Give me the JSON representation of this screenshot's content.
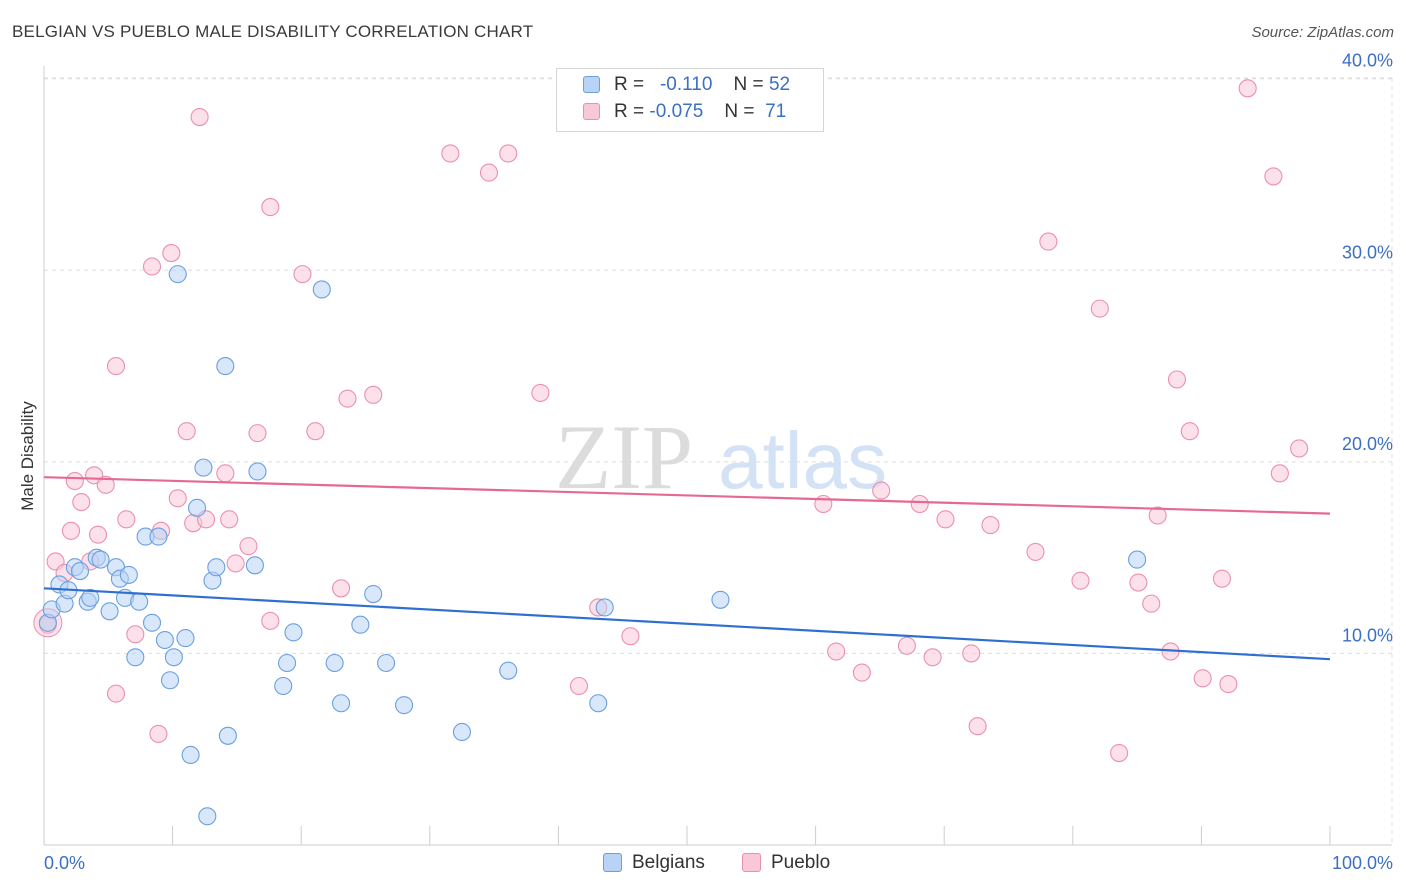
{
  "title": "BELGIAN VS PUEBLO MALE DISABILITY CORRELATION CHART",
  "source": "Source: ZipAtlas.com",
  "watermark": {
    "zip": "ZIP",
    "atlas": "atlas"
  },
  "legend": {
    "r_label": "R =",
    "n_label": "N =",
    "rows": [
      {
        "r": "-0.110",
        "n": "52",
        "fill": "#b8d3f5",
        "stroke": "#6b9fe0"
      },
      {
        "r": "-0.075",
        "n": "71",
        "fill": "#f9c8d8",
        "stroke": "#ec8fae"
      }
    ]
  },
  "bottom_legend": [
    "Belgians",
    "Pueblo"
  ],
  "colors": {
    "blue_fill": "#b8d3f5",
    "blue_stroke": "#6b9fe0",
    "blue_line": "#2f6fcf",
    "pink_fill": "#f9c8d8",
    "pink_stroke": "#ec8fae",
    "pink_line": "#e46a93",
    "grid": "#dddddd",
    "axis_text": "#3b6fc4"
  },
  "chart_data": {
    "type": "scatter",
    "ylabel": "Male Disability",
    "xlim": [
      0,
      100
    ],
    "ylim": [
      0,
      41.5
    ],
    "x_tick_labels": [
      "0.0%",
      "100.0%"
    ],
    "y_ticks": [
      10,
      20,
      30,
      40
    ],
    "y_tick_labels": [
      "10.0%",
      "20.0%",
      "30.0%",
      "40.0%"
    ],
    "series": [
      {
        "name": "Belgians",
        "trend": [
          [
            0,
            13.4
          ],
          [
            100,
            9.7
          ]
        ],
        "points": [
          [
            0.3,
            11.6
          ],
          [
            0.6,
            12.3
          ],
          [
            1.2,
            13.6
          ],
          [
            1.6,
            12.6
          ],
          [
            1.9,
            13.3
          ],
          [
            2.4,
            14.5
          ],
          [
            2.8,
            14.3
          ],
          [
            3.4,
            12.7
          ],
          [
            3.6,
            12.9
          ],
          [
            4.1,
            15.0
          ],
          [
            4.4,
            14.9
          ],
          [
            5.1,
            12.2
          ],
          [
            5.6,
            14.5
          ],
          [
            5.9,
            13.9
          ],
          [
            6.3,
            12.9
          ],
          [
            6.6,
            14.1
          ],
          [
            7.1,
            9.8
          ],
          [
            7.4,
            12.7
          ],
          [
            7.9,
            16.1
          ],
          [
            8.4,
            11.6
          ],
          [
            8.9,
            16.1
          ],
          [
            9.4,
            10.7
          ],
          [
            9.8,
            8.6
          ],
          [
            10.1,
            9.8
          ],
          [
            10.4,
            29.8
          ],
          [
            11.0,
            10.8
          ],
          [
            11.4,
            4.7
          ],
          [
            11.9,
            17.6
          ],
          [
            12.4,
            19.7
          ],
          [
            12.7,
            1.5
          ],
          [
            13.1,
            13.8
          ],
          [
            13.4,
            14.5
          ],
          [
            14.1,
            25.0
          ],
          [
            14.3,
            5.7
          ],
          [
            16.6,
            19.5
          ],
          [
            16.4,
            14.6
          ],
          [
            18.6,
            8.3
          ],
          [
            18.9,
            9.5
          ],
          [
            19.4,
            11.1
          ],
          [
            21.6,
            29.0
          ],
          [
            22.6,
            9.5
          ],
          [
            23.1,
            7.4
          ],
          [
            24.6,
            11.5
          ],
          [
            25.6,
            13.1
          ],
          [
            26.6,
            9.5
          ],
          [
            28.0,
            7.3
          ],
          [
            32.5,
            5.9
          ],
          [
            36.1,
            9.1
          ],
          [
            43.1,
            7.4
          ],
          [
            43.6,
            12.4
          ],
          [
            52.6,
            12.8
          ],
          [
            85.0,
            14.9
          ]
        ]
      },
      {
        "name": "Pueblo",
        "trend": [
          [
            0,
            19.2
          ],
          [
            100,
            17.3
          ]
        ],
        "points": [
          [
            0.3,
            11.5
          ],
          [
            0.9,
            14.8
          ],
          [
            1.6,
            14.2
          ],
          [
            2.1,
            16.4
          ],
          [
            2.4,
            19.0
          ],
          [
            2.9,
            17.9
          ],
          [
            3.6,
            14.8
          ],
          [
            3.9,
            19.3
          ],
          [
            4.2,
            16.2
          ],
          [
            4.8,
            18.8
          ],
          [
            5.6,
            25.0
          ],
          [
            5.6,
            7.9
          ],
          [
            6.4,
            17.0
          ],
          [
            7.1,
            11.0
          ],
          [
            8.4,
            30.2
          ],
          [
            8.9,
            5.8
          ],
          [
            9.1,
            16.4
          ],
          [
            9.9,
            30.9
          ],
          [
            10.4,
            18.1
          ],
          [
            11.1,
            21.6
          ],
          [
            11.6,
            16.8
          ],
          [
            12.1,
            38.0
          ],
          [
            12.6,
            17.0
          ],
          [
            14.1,
            19.4
          ],
          [
            14.4,
            17.0
          ],
          [
            14.9,
            14.7
          ],
          [
            15.9,
            15.6
          ],
          [
            16.6,
            21.5
          ],
          [
            17.6,
            33.3
          ],
          [
            17.6,
            11.7
          ],
          [
            20.1,
            29.8
          ],
          [
            21.1,
            21.6
          ],
          [
            23.1,
            13.4
          ],
          [
            23.6,
            23.3
          ],
          [
            25.6,
            23.5
          ],
          [
            31.6,
            36.1
          ],
          [
            34.6,
            35.1
          ],
          [
            36.1,
            36.1
          ],
          [
            38.6,
            23.6
          ],
          [
            41.6,
            8.3
          ],
          [
            43.1,
            12.4
          ],
          [
            45.6,
            10.9
          ],
          [
            60.6,
            17.8
          ],
          [
            61.6,
            10.1
          ],
          [
            63.6,
            9.0
          ],
          [
            65.1,
            18.5
          ],
          [
            67.1,
            10.4
          ],
          [
            68.1,
            17.8
          ],
          [
            69.1,
            9.8
          ],
          [
            70.1,
            17.0
          ],
          [
            72.1,
            10.0
          ],
          [
            72.6,
            6.2
          ],
          [
            73.6,
            16.7
          ],
          [
            77.1,
            15.3
          ],
          [
            78.1,
            31.5
          ],
          [
            80.6,
            13.8
          ],
          [
            82.1,
            28.0
          ],
          [
            83.6,
            4.8
          ],
          [
            85.1,
            13.7
          ],
          [
            86.1,
            12.6
          ],
          [
            86.6,
            17.2
          ],
          [
            88.1,
            24.3
          ],
          [
            87.6,
            10.1
          ],
          [
            89.1,
            21.6
          ],
          [
            90.1,
            8.7
          ],
          [
            91.6,
            13.9
          ],
          [
            92.1,
            8.4
          ],
          [
            93.6,
            39.5
          ],
          [
            95.6,
            34.9
          ],
          [
            96.1,
            19.4
          ],
          [
            97.6,
            20.7
          ]
        ]
      }
    ]
  }
}
